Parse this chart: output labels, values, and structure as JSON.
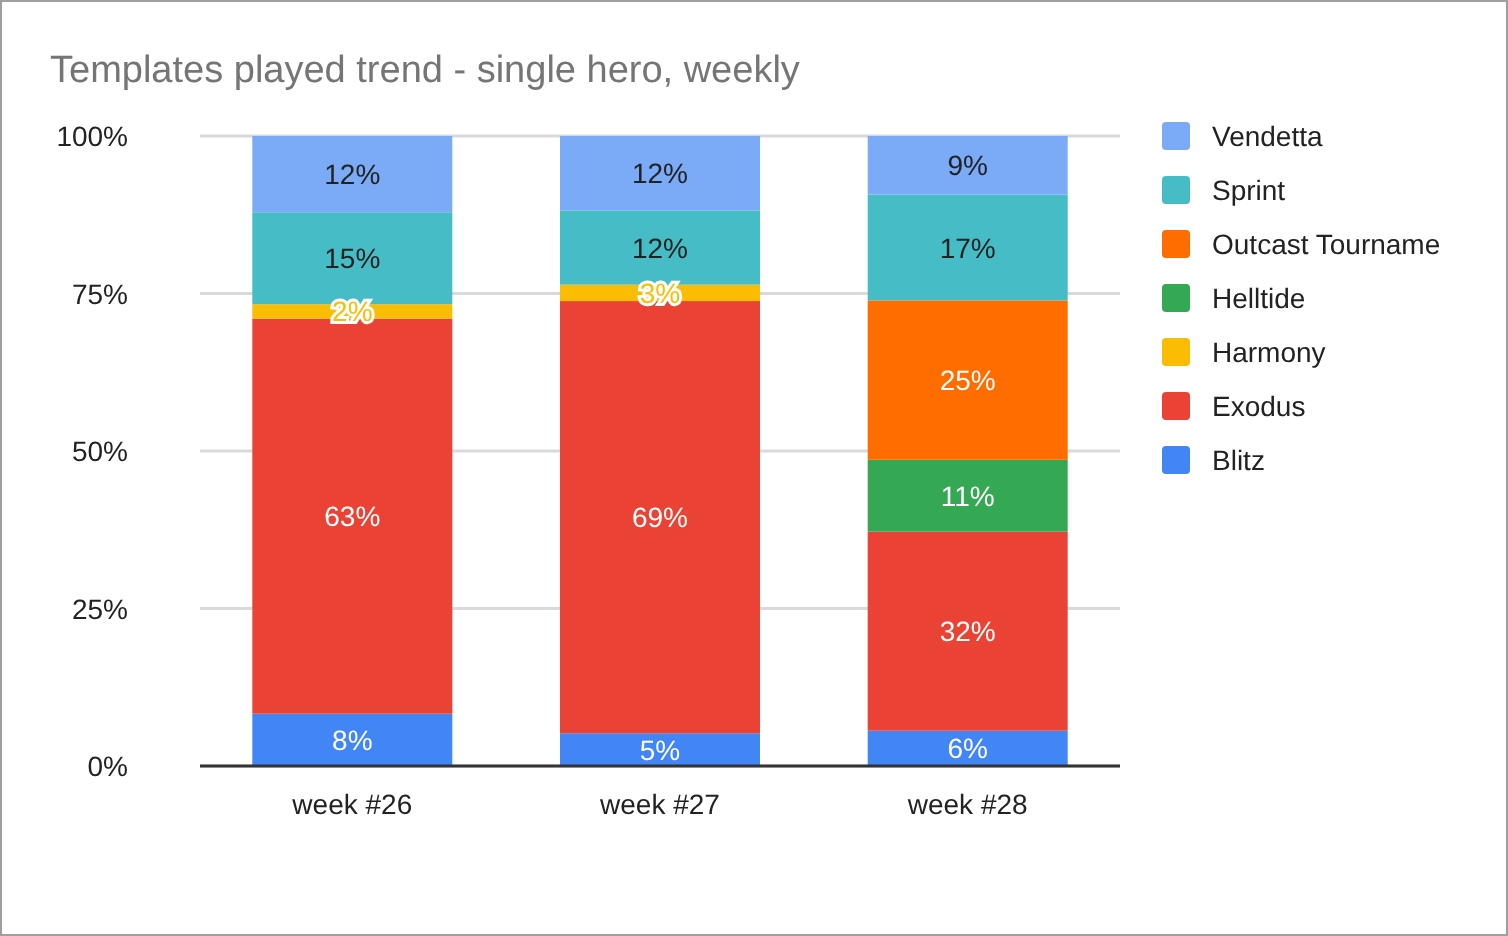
{
  "chart_data": {
    "type": "bar",
    "stacked": true,
    "title": "Templates played trend - single hero, weekly",
    "categories": [
      "week #26",
      "week #27",
      "week #28"
    ],
    "series": [
      {
        "name": "Blitz",
        "color": "#4285f4",
        "values": [
          8.3,
          5.2,
          5.6
        ],
        "value_labels": [
          "8%",
          "5%",
          "6%"
        ]
      },
      {
        "name": "Exodus",
        "color": "#ea4335",
        "values": [
          62.7,
          68.6,
          31.6
        ],
        "value_labels": [
          "63%",
          "69%",
          "32%"
        ]
      },
      {
        "name": "Harmony",
        "color": "#fbbc04",
        "values": [
          2.3,
          2.6,
          0
        ],
        "value_labels": [
          "2%",
          "3%",
          null
        ]
      },
      {
        "name": "Helltide",
        "color": "#34a853",
        "values": [
          0,
          0,
          11.4
        ],
        "value_labels": [
          null,
          null,
          "11%"
        ]
      },
      {
        "name": "Outcast Tourname",
        "color": "#ff6d01",
        "values": [
          0,
          0,
          25.3
        ],
        "value_labels": [
          null,
          null,
          "25%"
        ]
      },
      {
        "name": "Sprint",
        "color": "#46bdc6",
        "values": [
          14.6,
          11.8,
          16.8
        ],
        "value_labels": [
          "15%",
          "12%",
          "17%"
        ]
      },
      {
        "name": "Vendetta",
        "color": "#7baaf7",
        "values": [
          12.1,
          11.8,
          9.3
        ],
        "value_labels": [
          "12%",
          "12%",
          "9%"
        ]
      }
    ],
    "ylim": [
      0,
      100
    ],
    "yticks": [
      {
        "value": 0,
        "label": "0%"
      },
      {
        "value": 25,
        "label": "25%"
      },
      {
        "value": 50,
        "label": "50%"
      },
      {
        "value": 75,
        "label": "75%"
      },
      {
        "value": 100,
        "label": "100%"
      }
    ],
    "grid": "y",
    "legend": "right"
  }
}
